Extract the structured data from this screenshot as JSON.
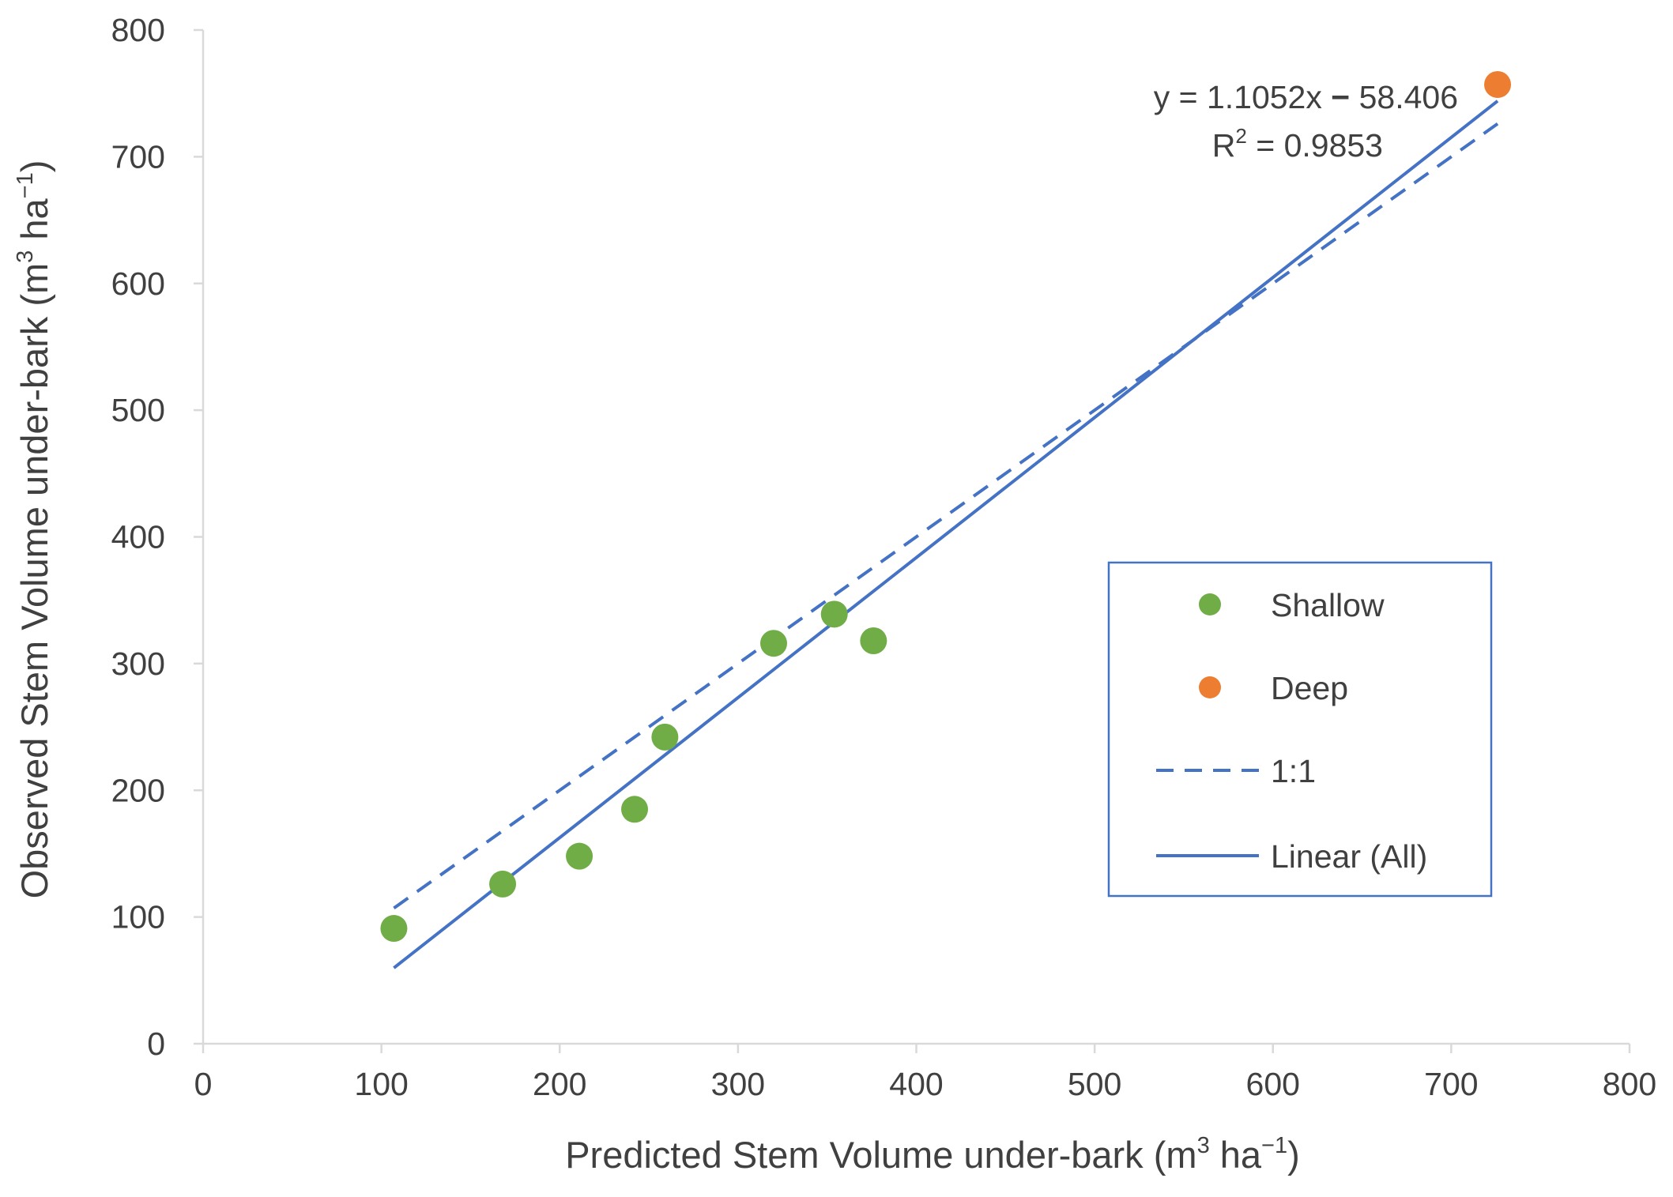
{
  "chart_data": {
    "type": "scatter",
    "title": "",
    "xlabel": {
      "main": "Predicted Stem Volume under-bark (m",
      "sup1": "3",
      "mid": " ha",
      "sup2": "−1",
      "end": ")"
    },
    "ylabel": {
      "main": "Observed Stem Volume under-bark (m",
      "sup1": "3",
      "mid": " ha",
      "sup2": "−1",
      "end": ")"
    },
    "xlim": [
      0,
      800
    ],
    "ylim": [
      0,
      800
    ],
    "xticks": [
      0,
      100,
      200,
      300,
      400,
      500,
      600,
      700,
      800
    ],
    "yticks": [
      0,
      100,
      200,
      300,
      400,
      500,
      600,
      700,
      800
    ],
    "grid": false,
    "series": [
      {
        "name": "Shallow",
        "kind": "scatter",
        "color": "#70ad47",
        "points": [
          {
            "x": 107,
            "y": 91
          },
          {
            "x": 168,
            "y": 126
          },
          {
            "x": 211,
            "y": 148
          },
          {
            "x": 242,
            "y": 185
          },
          {
            "x": 259,
            "y": 242
          },
          {
            "x": 320,
            "y": 316
          },
          {
            "x": 354,
            "y": 339
          },
          {
            "x": 376,
            "y": 318
          }
        ]
      },
      {
        "name": "Deep",
        "kind": "scatter",
        "color": "#ed7d31",
        "points": [
          {
            "x": 726,
            "y": 757
          }
        ]
      },
      {
        "name": "1:1",
        "kind": "line",
        "style": "dashed",
        "color": "#4472c4",
        "points": [
          {
            "x": 107,
            "y": 107
          },
          {
            "x": 726,
            "y": 726
          }
        ]
      },
      {
        "name": "Linear (All)",
        "kind": "line",
        "style": "solid",
        "color": "#4472c4",
        "slope": 1.1052,
        "intercept": -58.406,
        "x_range": [
          107,
          726
        ]
      }
    ],
    "annotations": {
      "equation": {
        "prefix": "y = 1.1052x ",
        "op": "−",
        "suffix": " 58.406"
      },
      "r2": {
        "base": "R",
        "sup": "2",
        "rest": " = 0.9853"
      }
    },
    "legend": {
      "position": "center-right",
      "entries": [
        "Shallow",
        "Deep",
        "1:1",
        "Linear (All)"
      ]
    },
    "colors": {
      "axis": "#d9d9d9",
      "text": "#404040",
      "legend_border": "#4472c4"
    }
  }
}
